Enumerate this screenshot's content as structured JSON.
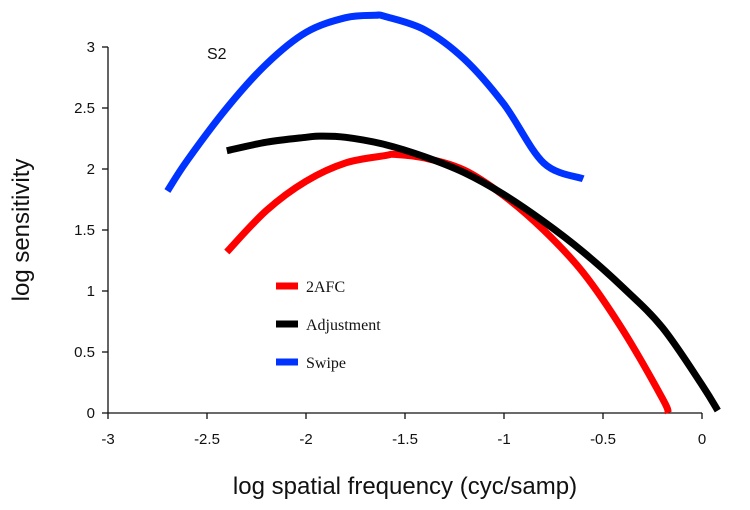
{
  "chart_data": {
    "type": "line",
    "title": "",
    "xlabel": "log spatial frequency (cyc/samp)",
    "ylabel": "log sensitivity",
    "xlim": [
      -3,
      0
    ],
    "ylim": [
      0,
      3
    ],
    "xticks": [
      -3,
      -2.5,
      -2,
      -1.5,
      -1,
      -0.5,
      0
    ],
    "xtick_labels": [
      "-3",
      "-2.5",
      "-2",
      "-1.5",
      "-1",
      "-0.5",
      "0"
    ],
    "yticks": [
      0,
      0.5,
      1,
      1.5,
      2,
      2.5,
      3
    ],
    "ytick_labels": [
      "0",
      "0.5",
      "1",
      "1.5",
      "2",
      "2.5",
      "3"
    ],
    "grid": false,
    "legend_position": "center-left",
    "annotations": [
      {
        "text": "S2",
        "x": -2.44,
        "y": 2.97
      }
    ],
    "series": [
      {
        "name": "2AFC",
        "color": "#ff0000",
        "x": [
          -2.4,
          -2.2,
          -2.0,
          -1.8,
          -1.6,
          -1.55,
          -1.4,
          -1.2,
          -1.0,
          -0.8,
          -0.6,
          -0.4,
          -0.2,
          -0.17
        ],
        "y": [
          1.32,
          1.66,
          1.9,
          2.05,
          2.11,
          2.12,
          2.09,
          1.99,
          1.78,
          1.5,
          1.15,
          0.68,
          0.12,
          0.0
        ]
      },
      {
        "name": "Adjustment",
        "color": "#000000",
        "x": [
          -2.4,
          -2.2,
          -2.0,
          -1.93,
          -1.8,
          -1.6,
          -1.4,
          -1.2,
          -1.0,
          -0.8,
          -0.6,
          -0.4,
          -0.2,
          0.0,
          0.08
        ],
        "y": [
          2.15,
          2.22,
          2.26,
          2.27,
          2.26,
          2.2,
          2.1,
          1.97,
          1.79,
          1.57,
          1.32,
          1.03,
          0.7,
          0.23,
          0.02
        ]
      },
      {
        "name": "Swipe",
        "color": "#0033ff",
        "x": [
          -2.7,
          -2.6,
          -2.4,
          -2.2,
          -2.0,
          -1.8,
          -1.65,
          -1.6,
          -1.4,
          -1.2,
          -1.0,
          -0.8,
          -0.6
        ],
        "y": [
          1.82,
          2.07,
          2.5,
          2.86,
          3.12,
          3.24,
          3.26,
          3.25,
          3.14,
          2.9,
          2.53,
          2.05,
          1.92
        ]
      }
    ]
  }
}
